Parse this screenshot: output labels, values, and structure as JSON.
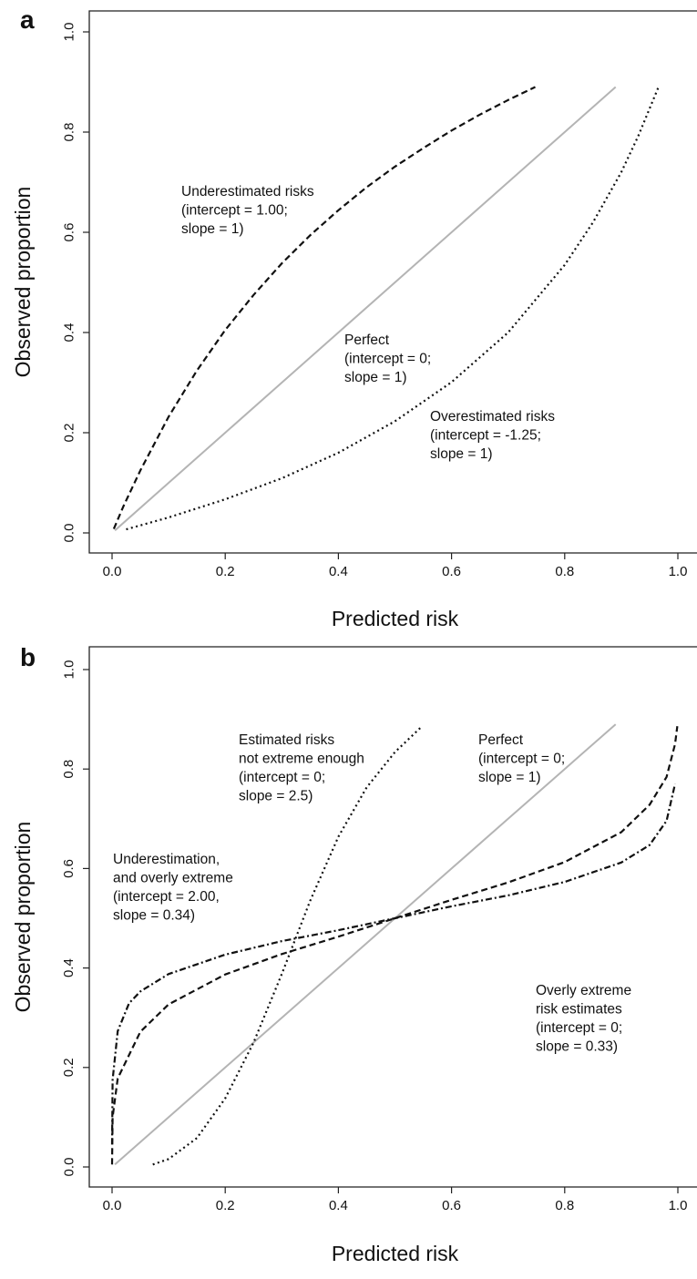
{
  "chart_data": [
    {
      "type": "line",
      "panel": "a",
      "xlabel": "Predicted risk",
      "ylabel": "Observed proportion",
      "xlim": [
        0,
        1.0
      ],
      "ylim": [
        0,
        1.0
      ],
      "x_ticks": [
        "0.0",
        "0.2",
        "0.4",
        "0.6",
        "0.8",
        "1.0"
      ],
      "y_ticks": [
        "0.0",
        "0.2",
        "0.4",
        "0.6",
        "0.8",
        "1.0"
      ],
      "grid": false,
      "series": [
        {
          "style": "solid-gray",
          "intercept": 0,
          "slope": 1,
          "x": [
            0.005,
            0.1,
            0.2,
            0.3,
            0.4,
            0.5,
            0.6,
            0.7,
            0.8,
            0.89
          ],
          "y": [
            0.005,
            0.1,
            0.2,
            0.3,
            0.4,
            0.5,
            0.6,
            0.7,
            0.8,
            0.89
          ]
        },
        {
          "style": "dashed",
          "intercept": 1.0,
          "slope": 1,
          "x": [
            0.003,
            0.02,
            0.05,
            0.1,
            0.15,
            0.2,
            0.25,
            0.3,
            0.35,
            0.4,
            0.45,
            0.5,
            0.55,
            0.6,
            0.65,
            0.7,
            0.748
          ],
          "y": [
            0.008,
            0.053,
            0.125,
            0.232,
            0.324,
            0.405,
            0.475,
            0.538,
            0.594,
            0.644,
            0.69,
            0.731,
            0.768,
            0.803,
            0.835,
            0.864,
            0.89
          ]
        },
        {
          "style": "dotted",
          "intercept": -1.25,
          "slope": 1,
          "x": [
            0.025,
            0.1,
            0.2,
            0.3,
            0.4,
            0.5,
            0.6,
            0.7,
            0.8,
            0.85,
            0.9,
            0.93,
            0.965
          ],
          "y": [
            0.007,
            0.031,
            0.067,
            0.109,
            0.16,
            0.223,
            0.301,
            0.4,
            0.535,
            0.62,
            0.72,
            0.792,
            0.888
          ]
        }
      ],
      "annotations": [
        [
          "Underestimated risks",
          "(intercept = 1.00;",
          "slope = 1)"
        ],
        [
          "Perfect",
          "(intercept = 0;",
          "slope = 1)"
        ],
        [
          "Overestimated risks",
          "(intercept = -1.25;",
          "slope = 1)"
        ]
      ]
    },
    {
      "type": "line",
      "panel": "b",
      "xlabel": "Predicted risk",
      "ylabel": "Observed proportion",
      "xlim": [
        0,
        1.0
      ],
      "ylim": [
        0,
        1.0
      ],
      "x_ticks": [
        "0.0",
        "0.2",
        "0.4",
        "0.6",
        "0.8",
        "1.0"
      ],
      "y_ticks": [
        "0.0",
        "0.2",
        "0.4",
        "0.6",
        "0.8",
        "1.0"
      ],
      "grid": false,
      "series": [
        {
          "style": "solid-gray",
          "intercept": 0,
          "slope": 1,
          "x": [
            0.005,
            0.1,
            0.2,
            0.3,
            0.4,
            0.5,
            0.6,
            0.7,
            0.8,
            0.89
          ],
          "y": [
            0.005,
            0.1,
            0.2,
            0.3,
            0.4,
            0.5,
            0.6,
            0.7,
            0.8,
            0.89
          ]
        },
        {
          "style": "dotted",
          "intercept": 0,
          "slope": 2.5,
          "x": [
            0.072,
            0.1,
            0.15,
            0.2,
            0.25,
            0.3,
            0.35,
            0.4,
            0.45,
            0.5,
            0.548
          ],
          "y": [
            0.005,
            0.016,
            0.058,
            0.138,
            0.25,
            0.388,
            0.535,
            0.664,
            0.763,
            0.834,
            0.886
          ]
        },
        {
          "style": "dash-dot",
          "intercept": 2.0,
          "slope": 0.34,
          "x": [
            0.0,
            0.001,
            0.01,
            0.03,
            0.05,
            0.1,
            0.2,
            0.3,
            0.4,
            0.5,
            0.6,
            0.7,
            0.8,
            0.9,
            0.95,
            0.98,
            0.995
          ],
          "y": [
            0.045,
            0.175,
            0.273,
            0.329,
            0.353,
            0.388,
            0.427,
            0.454,
            0.476,
            0.5,
            0.524,
            0.546,
            0.573,
            0.612,
            0.647,
            0.696,
            0.77
          ]
        },
        {
          "style": "dashed",
          "intercept": 0,
          "slope": 0.33,
          "x": [
            0.0,
            0.001,
            0.01,
            0.05,
            0.1,
            0.2,
            0.3,
            0.4,
            0.5,
            0.6,
            0.7,
            0.8,
            0.9,
            0.95,
            0.98,
            0.995,
            0.999
          ],
          "y": [
            0.005,
            0.1,
            0.178,
            0.272,
            0.327,
            0.387,
            0.428,
            0.463,
            0.5,
            0.537,
            0.572,
            0.613,
            0.673,
            0.728,
            0.784,
            0.85,
            0.886
          ]
        }
      ],
      "annotations": [
        [
          "Estimated risks",
          "not extreme enough",
          "(intercept = 0;",
          "slope = 2.5)"
        ],
        [
          "Perfect",
          "(intercept = 0;",
          "slope = 1)"
        ],
        [
          "Underestimation,",
          "and overly extreme",
          "(intercept = 2.00,",
          "slope = 0.34)"
        ],
        [
          "Overly extreme",
          "risk estimates",
          "(intercept = 0;",
          "slope = 0.33)"
        ]
      ]
    }
  ],
  "panels": {
    "a": {
      "letter": "a"
    },
    "b": {
      "letter": "b"
    }
  }
}
